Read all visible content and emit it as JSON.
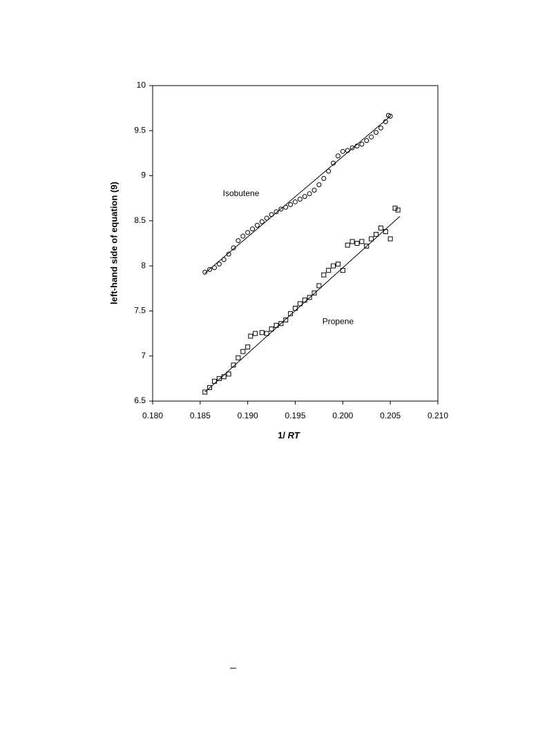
{
  "chart_data": {
    "type": "scatter",
    "ylabel": "left-hand side  of  equation  (9)",
    "xlabel": [
      "1/ ",
      "RT"
    ],
    "xlim": [
      0.18,
      0.21
    ],
    "xticks": [
      {
        "value": 0.18,
        "label": "0.180"
      },
      {
        "value": 0.185,
        "label": "0.185"
      },
      {
        "value": 0.19,
        "label": "0.190"
      },
      {
        "value": 0.195,
        "label": "0.195"
      },
      {
        "value": 0.2,
        "label": "0.200"
      },
      {
        "value": 0.205,
        "label": "0.205"
      },
      {
        "value": 0.21,
        "label": "0.210"
      }
    ],
    "ylim": [
      6.5,
      10
    ],
    "yticks": [
      6.5,
      7,
      7.5,
      8,
      8.5,
      9,
      9.5,
      10
    ],
    "grid": false,
    "series": [
      {
        "marker": "circle",
        "color": "#000000",
        "x": [
          0.1855,
          0.186,
          0.1865,
          0.187,
          0.1875,
          0.188,
          0.1885,
          0.189,
          0.1895,
          0.19,
          0.1905,
          0.191,
          0.1915,
          0.192,
          0.1925,
          0.193,
          0.1935,
          0.194,
          0.1945,
          0.195,
          0.1955,
          0.196,
          0.1965,
          0.197,
          0.1975,
          0.198,
          0.1985,
          0.199,
          0.1995,
          0.2,
          0.2005,
          0.201,
          0.2015,
          0.202,
          0.2025,
          0.203,
          0.2035,
          0.204,
          0.2045,
          0.2048,
          0.205
        ],
        "values": [
          7.93,
          7.96,
          7.98,
          8.02,
          8.07,
          8.13,
          8.2,
          8.28,
          8.33,
          8.37,
          8.41,
          8.45,
          8.49,
          8.53,
          8.57,
          8.6,
          8.63,
          8.65,
          8.68,
          8.71,
          8.74,
          8.77,
          8.8,
          8.84,
          8.9,
          8.97,
          9.05,
          9.14,
          9.22,
          9.27,
          9.28,
          9.31,
          9.33,
          9.35,
          9.39,
          9.43,
          9.48,
          9.53,
          9.6,
          9.67,
          9.66
        ]
      },
      {
        "marker": "square",
        "color": "#000000",
        "x": [
          0.1855,
          0.186,
          0.1865,
          0.187,
          0.1875,
          0.188,
          0.1885,
          0.189,
          0.1895,
          0.19,
          0.1903,
          0.1908,
          0.1915,
          0.192,
          0.1925,
          0.193,
          0.1935,
          0.194,
          0.1945,
          0.195,
          0.1955,
          0.196,
          0.1965,
          0.197,
          0.1975,
          0.198,
          0.1985,
          0.199,
          0.1995,
          0.2,
          0.2005,
          0.201,
          0.2015,
          0.202,
          0.2025,
          0.203,
          0.2035,
          0.204,
          0.2045,
          0.205,
          0.2055,
          0.2058
        ],
        "values": [
          6.6,
          6.65,
          6.72,
          6.75,
          6.77,
          6.8,
          6.9,
          6.98,
          7.05,
          7.1,
          7.22,
          7.25,
          7.26,
          7.25,
          7.3,
          7.34,
          7.36,
          7.4,
          7.47,
          7.53,
          7.58,
          7.62,
          7.65,
          7.7,
          7.78,
          7.9,
          7.95,
          8.0,
          8.02,
          7.95,
          8.23,
          8.27,
          8.25,
          8.27,
          8.22,
          8.3,
          8.35,
          8.42,
          8.38,
          8.3,
          8.64,
          8.62
        ]
      },
      {
        "marker": "line",
        "color": "#000000",
        "x": [
          0.1855,
          0.205
        ],
        "values": [
          7.92,
          9.66
        ]
      },
      {
        "marker": "line",
        "color": "#000000",
        "x": [
          0.1855,
          0.206
        ],
        "values": [
          6.6,
          8.55
        ]
      }
    ],
    "annotations": [
      {
        "text": "Isobutene",
        "x": 0.1893,
        "y": 8.8
      },
      {
        "text": "Propene",
        "x": 0.1995,
        "y": 7.38
      }
    ]
  }
}
